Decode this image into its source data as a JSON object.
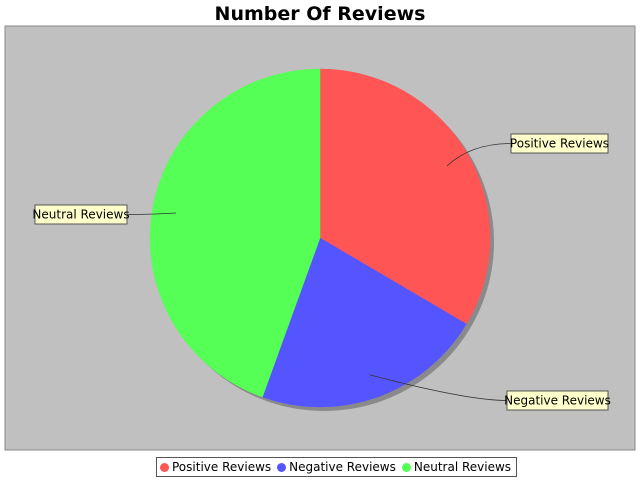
{
  "chart_data": {
    "type": "pie",
    "title": "Number Of Reviews",
    "slices": [
      {
        "label": "Positive Reviews",
        "value": 33.5,
        "color": "#ff5555"
      },
      {
        "label": "Negative Reviews",
        "value": 22.0,
        "color": "#5555ff"
      },
      {
        "label": "Neutral Reviews",
        "value": 44.5,
        "color": "#55ff55"
      }
    ],
    "start_angle_deg": 90,
    "direction": "clockwise",
    "legend_position": "bottom",
    "plot_background": "#c0c0c0",
    "label_background": "#ffffcc"
  }
}
